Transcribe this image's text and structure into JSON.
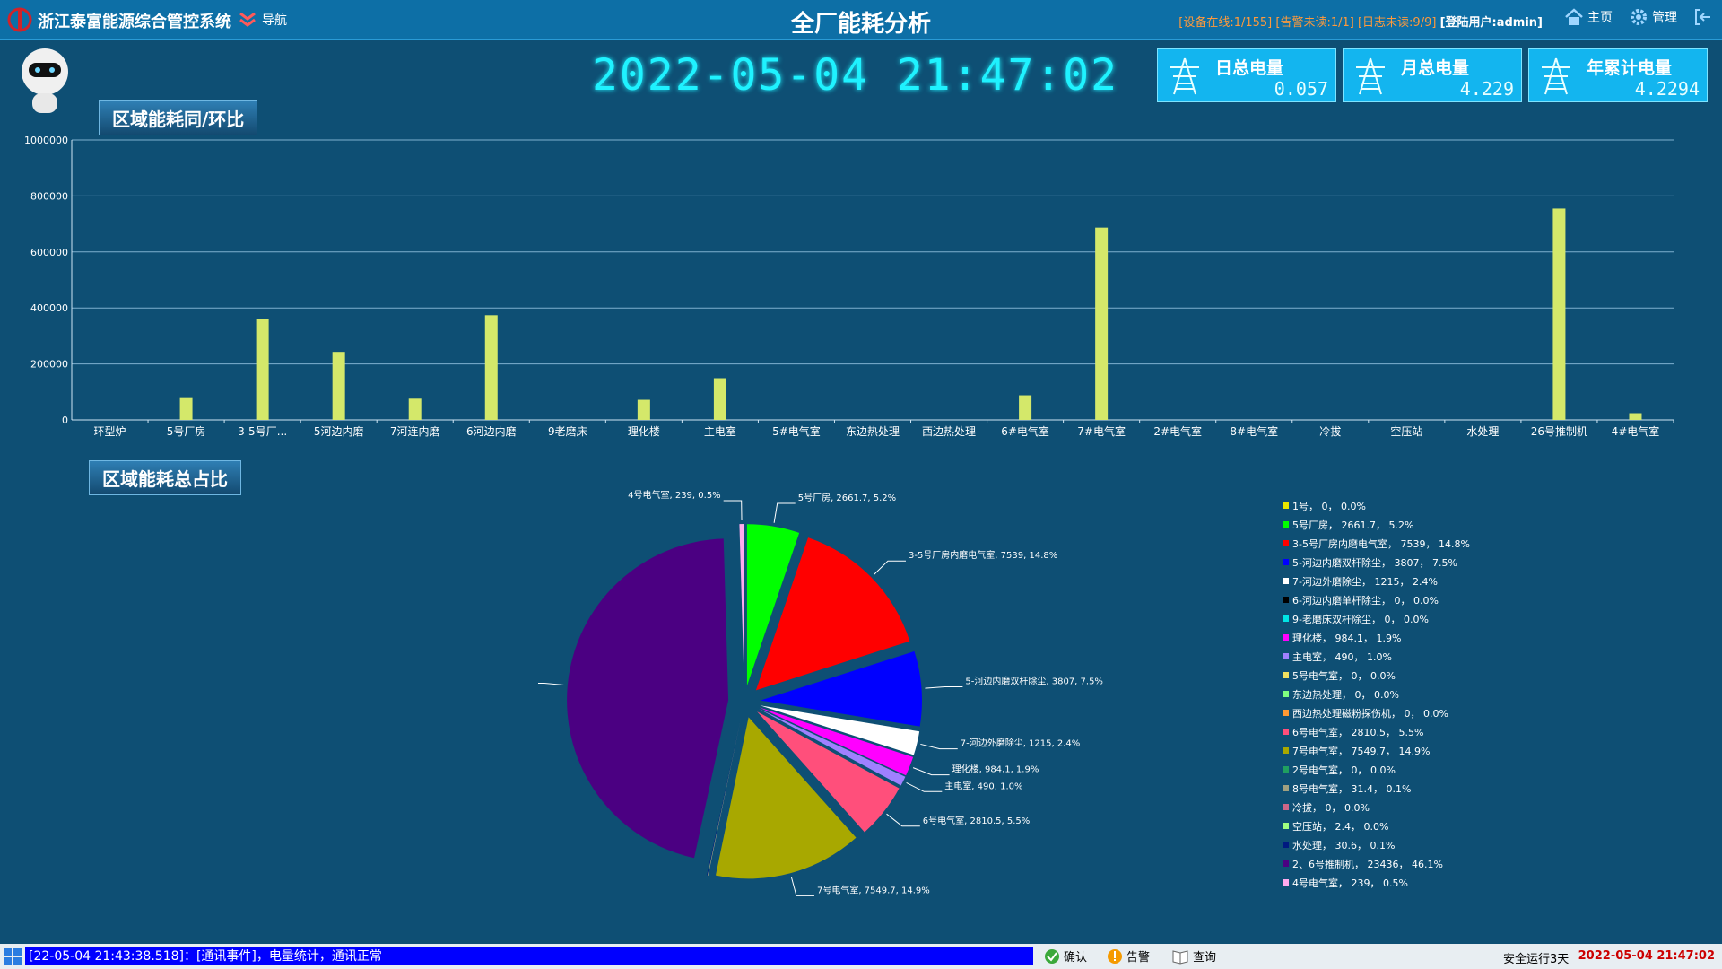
{
  "header": {
    "system_name": "浙江泰富能源综合管控系统",
    "nav_label": "导航",
    "page_title": "全厂能耗分析",
    "status_devices": "[设备在线:1/155]",
    "status_alarms": "[告警未读:1/1]",
    "status_logs": "[日志未读:9/9]",
    "login_label": "[登陆用户:",
    "login_user": "admin]",
    "home_label": "主页",
    "manage_label": "管理",
    "exit_icon": "exit-icon"
  },
  "clock": "2022-05-04 21:47:02",
  "kpis": [
    {
      "name": "日总电量",
      "value": "0.057"
    },
    {
      "name": "月总电量",
      "value": "4.229"
    },
    {
      "name": "年累计电量",
      "value": "4.2294"
    }
  ],
  "section_bar_title": "区域能耗同/环比",
  "section_pie_title": "区域能耗总占比",
  "chart_data": [
    {
      "type": "bar",
      "categories": [
        "环型炉",
        "5号厂房",
        "3-5号厂...",
        "5河边内磨",
        "7河连内磨",
        "6河边内磨",
        "9老磨床",
        "理化楼",
        "主电室",
        "5#电气室",
        "东边热处理",
        "西边热处理",
        "6#电气室",
        "7#电气室",
        "2#电气室",
        "8#电气室",
        "冷拔",
        "空压站",
        "水处理",
        "26号推制机",
        "4#电气室"
      ],
      "values": [
        0,
        78000,
        360000,
        243000,
        76000,
        374000,
        0,
        72000,
        149000,
        0,
        0,
        0,
        88000,
        687000,
        0,
        0,
        0,
        0,
        0,
        755000,
        24000
      ],
      "ylim": [
        0,
        1000000
      ],
      "yticks": [
        "0",
        "200000",
        "400000",
        "600000",
        "800000",
        "1000000"
      ],
      "bar_color": "#d4e86a",
      "grid": true
    },
    {
      "type": "pie",
      "slices": [
        {
          "name": "1号",
          "value": 0,
          "pct": "0.0%",
          "color": "#e8e800"
        },
        {
          "name": "5号厂房",
          "value": 2661.7,
          "pct": "5.2%",
          "color": "#00ff00"
        },
        {
          "name": "3-5号厂房内磨电气室",
          "value": 7539,
          "pct": "14.8%",
          "color": "#ff0000"
        },
        {
          "name": "5-河边内磨双杆除尘",
          "value": 3807,
          "pct": "7.5%",
          "color": "#0000ff"
        },
        {
          "name": "7-河边外磨除尘",
          "value": 1215,
          "pct": "2.4%",
          "color": "#ffffff"
        },
        {
          "name": "6-河边内磨单杆除尘",
          "value": 0,
          "pct": "0.0%",
          "color": "#000000"
        },
        {
          "name": "9-老磨床双杆除尘",
          "value": 0,
          "pct": "0.0%",
          "color": "#00e5e5"
        },
        {
          "name": "理化楼",
          "value": 984.1,
          "pct": "1.9%",
          "color": "#ff00ff"
        },
        {
          "name": "主电室",
          "value": 490,
          "pct": "1.0%",
          "color": "#a080ff"
        },
        {
          "name": "5号电气室",
          "value": 0,
          "pct": "0.0%",
          "color": "#f0e060"
        },
        {
          "name": "东边热处理",
          "value": 0,
          "pct": "0.0%",
          "color": "#80ff80"
        },
        {
          "name": "西边热处理磁粉探伤机",
          "value": 0,
          "pct": "0.0%",
          "color": "#ff9933"
        },
        {
          "name": "6号电气室",
          "value": 2810.5,
          "pct": "5.5%",
          "color": "#ff4f7b"
        },
        {
          "name": "7号电气室",
          "value": 7549.7,
          "pct": "14.9%",
          "color": "#a8a800"
        },
        {
          "name": "2号电气室",
          "value": 0,
          "pct": "0.0%",
          "color": "#20a060"
        },
        {
          "name": "8号电气室",
          "value": 31.4,
          "pct": "0.1%",
          "color": "#a0a080"
        },
        {
          "name": "冷拔",
          "value": 0,
          "pct": "0.0%",
          "color": "#cc6688"
        },
        {
          "name": "空压站",
          "value": 2.4,
          "pct": "0.0%",
          "color": "#a0ff80"
        },
        {
          "name": "水处理",
          "value": 30.6,
          "pct": "0.1%",
          "color": "#001a80"
        },
        {
          "name": "2、6号推制机",
          "value": 23436,
          "pct": "46.1%",
          "color": "#4b0082"
        },
        {
          "name": "4号电气室",
          "value": 239,
          "pct": "0.5%",
          "color": "#ffaaee"
        }
      ]
    }
  ],
  "legend_items": [
    "1号， 0， 0.0%",
    "5号厂房， 2661.7， 5.2%",
    "3-5号厂房内磨电气室， 7539， 14.8%",
    "5-河边内磨双杆除尘， 3807， 7.5%",
    "7-河边外磨除尘， 1215， 2.4%",
    "6-河边内磨单杆除尘， 0， 0.0%",
    "9-老磨床双杆除尘， 0， 0.0%",
    "理化楼， 984.1， 1.9%",
    "主电室， 490， 1.0%",
    "5号电气室， 0， 0.0%",
    "东边热处理， 0， 0.0%",
    "西边热处理磁粉探伤机， 0， 0.0%",
    "6号电气室， 2810.5， 5.5%",
    "7号电气室， 7549.7， 14.9%",
    "2号电气室， 0， 0.0%",
    "8号电气室， 31.4， 0.1%",
    "冷拔， 0， 0.0%",
    "空压站， 2.4， 0.0%",
    "水处理， 30.6， 0.1%",
    "2、6号推制机， 23436， 46.1%",
    "4号电气室， 239， 0.5%"
  ],
  "footer": {
    "event_text": "[22-05-04 21:43:38.518]：[通讯事件]，电量统计，通讯正常",
    "confirm_label": "确认",
    "alarm_label": "告警",
    "query_label": "查询",
    "safe_text": "安全运行3天",
    "time_text": "2022-05-04 21:47:02"
  }
}
